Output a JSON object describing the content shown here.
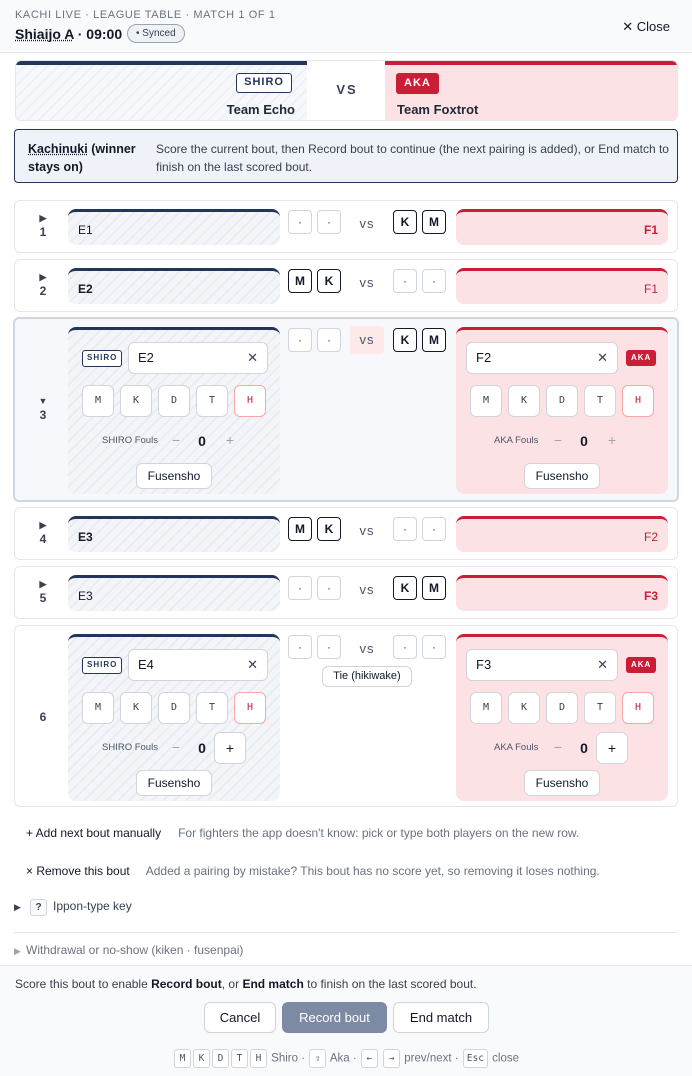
{
  "header": {
    "super": "KACHI LIVE · LEAGUE TABLE · MATCH 1 OF 1",
    "court": "Shiaijo A",
    "time": "· 09:00",
    "synced": "• Synced",
    "close": "✕ Close"
  },
  "teams": {
    "shiro_badge": "SHIRO",
    "shiro_name": "Team Echo",
    "vs": "VS",
    "aka_badge": "AKA",
    "aka_name": "Team Foxtrot"
  },
  "rules": {
    "title": "Kachinuki",
    "title_suffix": " (winner stays on)",
    "desc": "Score the current bout, then Record bout to continue (the next pairing is added), or End match to finish on the last scored bout."
  },
  "vs_label": "vs",
  "kinds": [
    "M",
    "K",
    "D",
    "T",
    "H"
  ],
  "labels": {
    "shiro_fouls": "SHIRO Fouls",
    "aka_fouls": "AKA Fouls",
    "fusensho": "Fusensho",
    "shiro_badge": "SHIRO",
    "aka_badge": "AKA",
    "clear": "✕",
    "minus": "−",
    "plus": "+",
    "tie": "Tie (hikiwake)"
  },
  "bouts": [
    {
      "num": "1",
      "arrow": "▶",
      "shiro": "E1",
      "aka": "F1",
      "shiro_scores": [
        "·",
        "·"
      ],
      "aka_scores": [
        "K",
        "M"
      ]
    },
    {
      "num": "2",
      "arrow": "▶",
      "shiro": "E2",
      "aka": "F1",
      "shiro_scores": [
        "M",
        "K"
      ],
      "aka_scores": [
        "·",
        "·"
      ]
    },
    {
      "num": "3",
      "arrow": "▼",
      "shiro": "E2",
      "aka": "F2",
      "shiro_scores": [
        "·",
        "·"
      ],
      "aka_scores": [
        "K",
        "M"
      ],
      "shiro_fouls": "0",
      "aka_fouls": "0"
    },
    {
      "num": "4",
      "arrow": "▶",
      "shiro": "E3",
      "aka": "F2",
      "shiro_scores": [
        "M",
        "K"
      ],
      "aka_scores": [
        "·",
        "·"
      ]
    },
    {
      "num": "5",
      "arrow": "▶",
      "shiro": "E3",
      "aka": "F3",
      "shiro_scores": [
        "·",
        "·"
      ],
      "aka_scores": [
        "K",
        "M"
      ]
    },
    {
      "num": "6",
      "shiro": "E4",
      "aka": "F3",
      "shiro_scores": [
        "·",
        "·"
      ],
      "aka_scores": [
        "·",
        "·"
      ],
      "shiro_fouls": "0",
      "aka_fouls": "0"
    }
  ],
  "actions": {
    "add": "+ Add next bout manually",
    "add_desc": "For fighters the app doesn't know: pick or type both players on the new row.",
    "remove": "× Remove this bout",
    "remove_desc": "Added a pairing by mistake? This bout has no score yet, so removing it loses nothing."
  },
  "key_section": {
    "arrow": "▶",
    "q": "?",
    "label": "Ippon-type key"
  },
  "withdrawal": {
    "arrow": "▶",
    "label": "Withdrawal or no-show (kiken · fusenpai)"
  },
  "footer": {
    "msg_pre": "Score this bout to enable ",
    "msg_b1": "Record bout",
    "msg_mid": ", or ",
    "msg_b2": "End match",
    "msg_post": " to finish on the last scored bout.",
    "cancel": "Cancel",
    "record": "Record bout",
    "end": "End match"
  },
  "shortcuts": {
    "keys": [
      "M",
      "K",
      "D",
      "T",
      "H"
    ],
    "shiro": "Shiro ·",
    "shift": "⇧",
    "aka": "Aka ·",
    "left": "←",
    "right": "→",
    "prevnext": "prev/next ·",
    "esc": "Esc",
    "close": "close"
  },
  "colors": {
    "shiro": "#233659",
    "aka": "#c81e36",
    "primary_disabled": "#7d8aa3"
  }
}
